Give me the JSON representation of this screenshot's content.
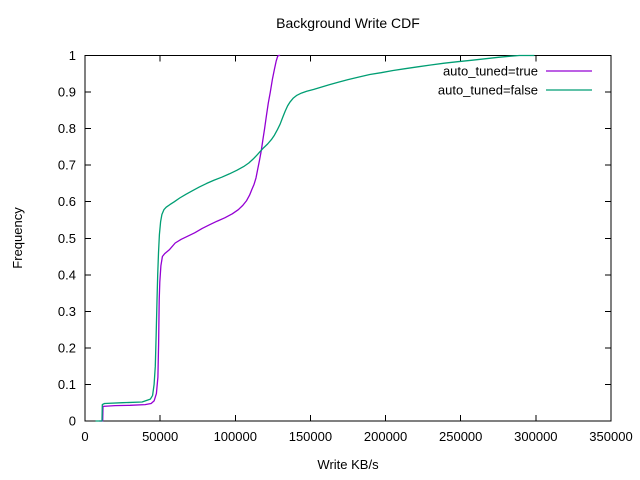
{
  "chart_data": {
    "type": "line",
    "title": "Background Write CDF",
    "xlabel": "Write KB/s",
    "ylabel": "Frequency",
    "xlim": [
      0,
      350000
    ],
    "ylim": [
      0,
      1
    ],
    "xtick_values": [
      0,
      50000,
      100000,
      150000,
      200000,
      250000,
      300000,
      350000
    ],
    "xtick_labels": [
      "0",
      "50000",
      "100000",
      "150000",
      "200000",
      "250000",
      "300000",
      "350000"
    ],
    "ytick_values": [
      0,
      0.1,
      0.2,
      0.3,
      0.4,
      0.5,
      0.6,
      0.7,
      0.8,
      0.9,
      1
    ],
    "ytick_labels": [
      "0",
      "0.1",
      "0.2",
      "0.3",
      "0.4",
      "0.5",
      "0.6",
      "0.7",
      "0.8",
      "0.9",
      "1"
    ],
    "grid": false,
    "legend_position": "top-right-inside",
    "background_color": "#ffffff",
    "text_color": "#000000",
    "border_color": "#000000",
    "series": [
      {
        "name": "auto_tuned=true",
        "color": "#9400d3",
        "points": [
          [
            9500,
            0
          ],
          [
            11800,
            0
          ],
          [
            12000,
            0.04
          ],
          [
            20000,
            0.042
          ],
          [
            30000,
            0.043
          ],
          [
            40000,
            0.045
          ],
          [
            44000,
            0.048
          ],
          [
            46000,
            0.055
          ],
          [
            47500,
            0.075
          ],
          [
            48500,
            0.12
          ],
          [
            49000,
            0.21
          ],
          [
            49400,
            0.33
          ],
          [
            49800,
            0.38
          ],
          [
            50500,
            0.425
          ],
          [
            51500,
            0.45
          ],
          [
            53000,
            0.458
          ],
          [
            56000,
            0.468
          ],
          [
            60000,
            0.487
          ],
          [
            64000,
            0.497
          ],
          [
            68000,
            0.505
          ],
          [
            73000,
            0.515
          ],
          [
            78000,
            0.527
          ],
          [
            83000,
            0.537
          ],
          [
            88000,
            0.547
          ],
          [
            93000,
            0.556
          ],
          [
            98000,
            0.567
          ],
          [
            102000,
            0.578
          ],
          [
            105000,
            0.59
          ],
          [
            107500,
            0.603
          ],
          [
            109500,
            0.618
          ],
          [
            111000,
            0.633
          ],
          [
            112500,
            0.648
          ],
          [
            113800,
            0.665
          ],
          [
            115000,
            0.69
          ],
          [
            116200,
            0.715
          ],
          [
            117300,
            0.74
          ],
          [
            118400,
            0.77
          ],
          [
            119500,
            0.8
          ],
          [
            120700,
            0.835
          ],
          [
            122000,
            0.87
          ],
          [
            123300,
            0.9
          ],
          [
            124700,
            0.935
          ],
          [
            126000,
            0.962
          ],
          [
            127200,
            0.985
          ],
          [
            128200,
            0.998
          ],
          [
            128800,
            1
          ],
          [
            129800,
            1
          ]
        ]
      },
      {
        "name": "auto_tuned=false",
        "color": "#009e73",
        "points": [
          [
            7000,
            0
          ],
          [
            11300,
            0
          ],
          [
            11500,
            0.045
          ],
          [
            13000,
            0.048
          ],
          [
            25000,
            0.05
          ],
          [
            38000,
            0.052
          ],
          [
            43500,
            0.06
          ],
          [
            45000,
            0.07
          ],
          [
            46000,
            0.1
          ],
          [
            46800,
            0.15
          ],
          [
            47400,
            0.24
          ],
          [
            47900,
            0.33
          ],
          [
            48400,
            0.4
          ],
          [
            48900,
            0.46
          ],
          [
            49500,
            0.51
          ],
          [
            50300,
            0.545
          ],
          [
            51200,
            0.565
          ],
          [
            52500,
            0.578
          ],
          [
            54000,
            0.585
          ],
          [
            56500,
            0.592
          ],
          [
            59500,
            0.6
          ],
          [
            63000,
            0.61
          ],
          [
            67000,
            0.62
          ],
          [
            71500,
            0.63
          ],
          [
            76000,
            0.64
          ],
          [
            81000,
            0.65
          ],
          [
            86000,
            0.659
          ],
          [
            91000,
            0.667
          ],
          [
            96000,
            0.676
          ],
          [
            101000,
            0.686
          ],
          [
            105500,
            0.696
          ],
          [
            109000,
            0.706
          ],
          [
            112000,
            0.717
          ],
          [
            114500,
            0.728
          ],
          [
            116500,
            0.737
          ],
          [
            119000,
            0.748
          ],
          [
            121500,
            0.758
          ],
          [
            124000,
            0.77
          ],
          [
            126000,
            0.782
          ],
          [
            128000,
            0.797
          ],
          [
            129800,
            0.812
          ],
          [
            131500,
            0.83
          ],
          [
            133200,
            0.848
          ],
          [
            134800,
            0.862
          ],
          [
            136500,
            0.873
          ],
          [
            138500,
            0.883
          ],
          [
            141000,
            0.891
          ],
          [
            144000,
            0.897
          ],
          [
            147500,
            0.902
          ],
          [
            152000,
            0.907
          ],
          [
            157000,
            0.913
          ],
          [
            162500,
            0.92
          ],
          [
            168500,
            0.927
          ],
          [
            175000,
            0.934
          ],
          [
            182000,
            0.941
          ],
          [
            189500,
            0.948
          ],
          [
            197000,
            0.953
          ],
          [
            205000,
            0.959
          ],
          [
            213000,
            0.964
          ],
          [
            221500,
            0.969
          ],
          [
            230000,
            0.974
          ],
          [
            239000,
            0.979
          ],
          [
            248000,
            0.983
          ],
          [
            257000,
            0.987
          ],
          [
            266000,
            0.991
          ],
          [
            275000,
            0.995
          ],
          [
            283000,
            0.998
          ],
          [
            289000,
            1
          ],
          [
            299000,
            1
          ]
        ]
      }
    ]
  }
}
